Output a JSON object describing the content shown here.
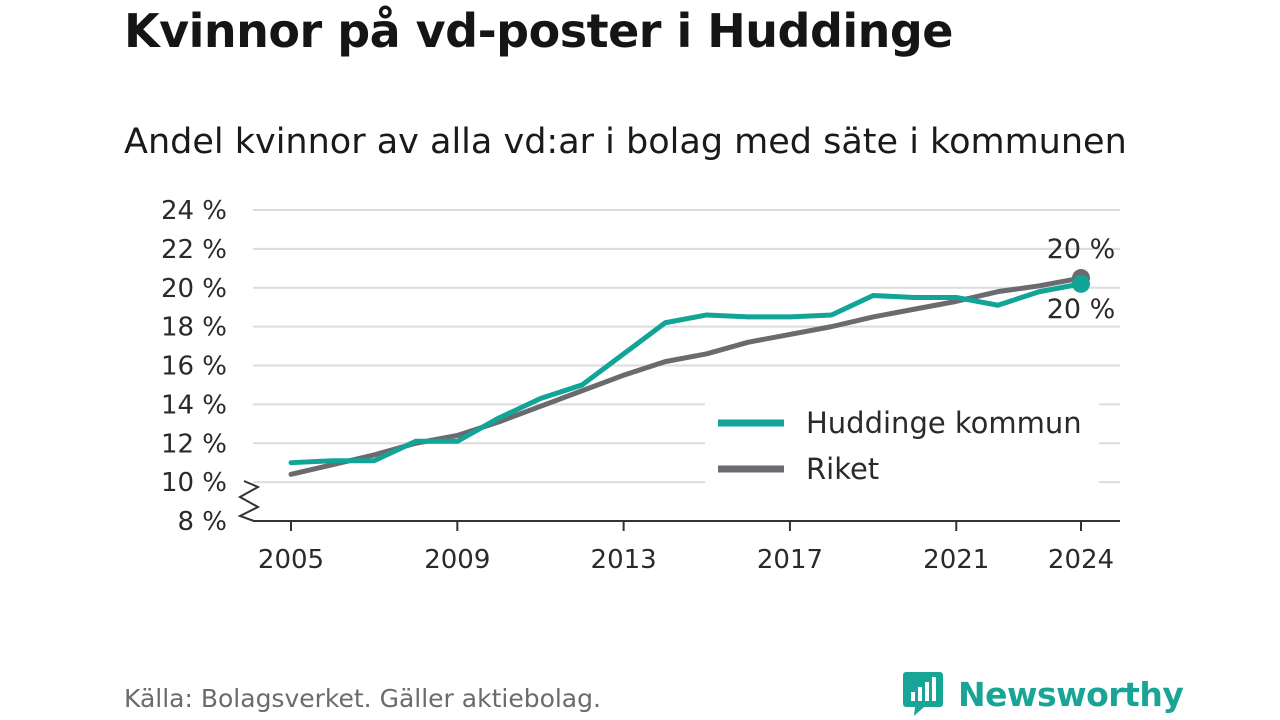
{
  "title": "Kvinnor på vd-poster i Huddinge",
  "subtitle": "Andel kvinnor av alla vd:ar i bolag med säte i kommunen",
  "source": "Källa: Bolagsverket. Gäller aktiebolag.",
  "brand": {
    "name": "Newsworthy",
    "icon": "bar-chart-speech-bubble-icon"
  },
  "colors": {
    "huddinge": "#12a597",
    "riket": "#6b6a6f",
    "grid": "#dcdcdc",
    "axis": "#333333",
    "text": "#2a2a2a",
    "brand": "#19a596"
  },
  "chart_data": {
    "type": "line",
    "x": [
      2005,
      2006,
      2007,
      2008,
      2009,
      2010,
      2011,
      2012,
      2013,
      2014,
      2015,
      2016,
      2017,
      2018,
      2019,
      2020,
      2021,
      2022,
      2023,
      2024
    ],
    "series": [
      {
        "name": "Huddinge kommun",
        "values": [
          11.0,
          11.1,
          11.1,
          12.1,
          12.1,
          13.3,
          14.3,
          15.0,
          16.6,
          18.2,
          18.6,
          18.5,
          18.5,
          18.6,
          19.6,
          19.5,
          19.5,
          19.1,
          19.8,
          20.2
        ]
      },
      {
        "name": "Riket",
        "values": [
          10.4,
          10.9,
          11.4,
          12.0,
          12.4,
          13.1,
          13.9,
          14.7,
          15.5,
          16.2,
          16.6,
          17.2,
          17.6,
          18.0,
          18.5,
          18.9,
          19.3,
          19.8,
          20.1,
          20.5
        ]
      }
    ],
    "end_labels": [
      "20 %",
      "20 %"
    ],
    "y_ticks": [
      "8 %",
      "10 %",
      "12 %",
      "14 %",
      "16 %",
      "18 %",
      "20 %",
      "22 %",
      "24 %"
    ],
    "y_tick_values": [
      8,
      10,
      12,
      14,
      16,
      18,
      20,
      22,
      24
    ],
    "x_ticks": [
      "2005",
      "2009",
      "2013",
      "2017",
      "2021",
      "2024"
    ],
    "x_tick_values": [
      2005,
      2009,
      2013,
      2017,
      2021,
      2024
    ],
    "ylim": [
      8,
      24
    ],
    "xlim": [
      2005,
      2024
    ],
    "y_axis_break": true,
    "grid": true,
    "legend_position": "bottom-right"
  }
}
